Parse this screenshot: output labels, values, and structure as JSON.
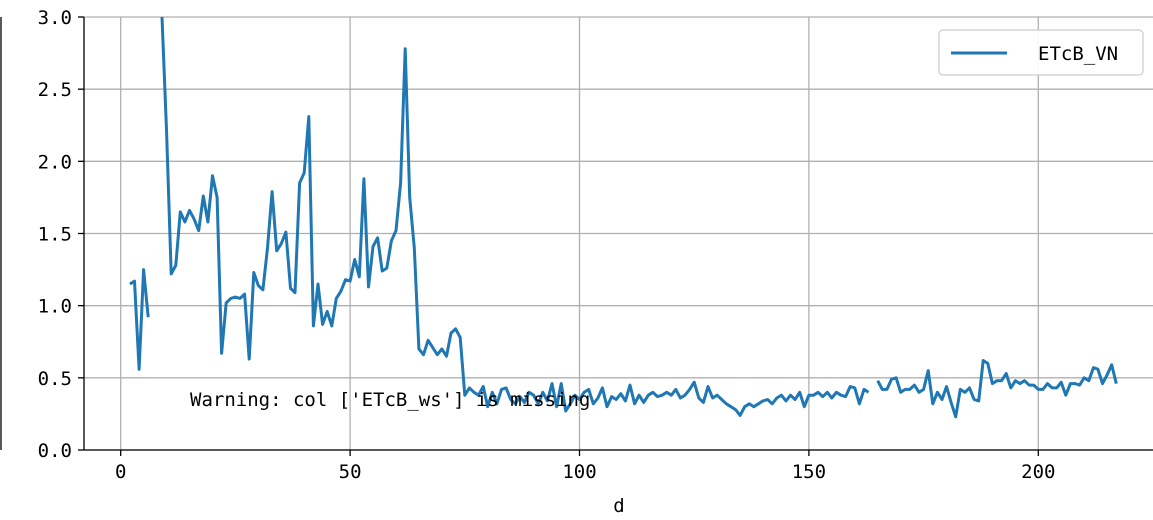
{
  "chart_data": {
    "type": "line",
    "title": "",
    "xlabel": "d",
    "ylabel": "",
    "xlim": [
      -8,
      225
    ],
    "ylim": [
      0,
      3.0
    ],
    "xticks": [
      0,
      50,
      100,
      150,
      200
    ],
    "yticks": [
      0.0,
      0.5,
      1.0,
      1.5,
      2.0,
      2.5,
      3.0
    ],
    "xtick_labels": [
      "0",
      "50",
      "100",
      "150",
      "200"
    ],
    "ytick_labels": [
      "0.0",
      "0.5",
      "1.0",
      "1.5",
      "2.0",
      "2.5",
      "3.0"
    ],
    "grid": true,
    "legend": "top-right",
    "annotation": "Warning: col ['ETcB_ws'] is missing",
    "series": [
      {
        "name": "ETcB_VN",
        "color": "#1f77b4",
        "segments": [
          [
            [
              2,
              1.15
            ],
            [
              3,
              1.17
            ],
            [
              4,
              0.56
            ],
            [
              5,
              1.25
            ],
            [
              6,
              0.92
            ]
          ],
          [
            [
              9,
              3.0
            ],
            [
              10,
              2.2
            ],
            [
              11,
              1.22
            ],
            [
              12,
              1.28
            ],
            [
              13,
              1.65
            ],
            [
              14,
              1.58
            ],
            [
              15,
              1.66
            ],
            [
              16,
              1.6
            ],
            [
              17,
              1.52
            ],
            [
              18,
              1.76
            ],
            [
              19,
              1.58
            ],
            [
              20,
              1.9
            ],
            [
              21,
              1.75
            ],
            [
              22,
              0.67
            ],
            [
              23,
              1.02
            ],
            [
              24,
              1.05
            ],
            [
              25,
              1.06
            ],
            [
              26,
              1.05
            ],
            [
              27,
              1.08
            ],
            [
              28,
              0.63
            ],
            [
              29,
              1.23
            ],
            [
              30,
              1.14
            ],
            [
              31,
              1.11
            ],
            [
              32,
              1.4
            ],
            [
              33,
              1.79
            ],
            [
              34,
              1.38
            ],
            [
              35,
              1.43
            ],
            [
              36,
              1.51
            ],
            [
              37,
              1.12
            ],
            [
              38,
              1.09
            ],
            [
              39,
              1.85
            ],
            [
              40,
              1.92
            ],
            [
              41,
              2.31
            ],
            [
              42,
              0.86
            ],
            [
              43,
              1.15
            ],
            [
              44,
              0.87
            ],
            [
              45,
              0.96
            ],
            [
              46,
              0.86
            ],
            [
              47,
              1.05
            ],
            [
              48,
              1.1
            ],
            [
              49,
              1.18
            ],
            [
              50,
              1.17
            ],
            [
              51,
              1.32
            ],
            [
              52,
              1.2
            ],
            [
              53,
              1.88
            ],
            [
              54,
              1.13
            ],
            [
              55,
              1.41
            ],
            [
              56,
              1.47
            ],
            [
              57,
              1.24
            ],
            [
              58,
              1.26
            ],
            [
              59,
              1.45
            ],
            [
              60,
              1.52
            ],
            [
              61,
              1.85
            ],
            [
              62,
              2.78
            ],
            [
              63,
              1.75
            ],
            [
              64,
              1.4
            ],
            [
              65,
              0.7
            ],
            [
              66,
              0.66
            ],
            [
              67,
              0.76
            ],
            [
              68,
              0.71
            ],
            [
              69,
              0.66
            ],
            [
              70,
              0.7
            ],
            [
              71,
              0.65
            ],
            [
              72,
              0.81
            ],
            [
              73,
              0.84
            ],
            [
              74,
              0.78
            ],
            [
              75,
              0.38
            ],
            [
              76,
              0.43
            ],
            [
              77,
              0.4
            ],
            [
              78,
              0.38
            ],
            [
              79,
              0.44
            ],
            [
              80,
              0.3
            ],
            [
              81,
              0.4
            ],
            [
              82,
              0.32
            ],
            [
              83,
              0.42
            ],
            [
              84,
              0.43
            ],
            [
              85,
              0.35
            ],
            [
              86,
              0.32
            ],
            [
              87,
              0.37
            ],
            [
              88,
              0.33
            ],
            [
              89,
              0.4
            ],
            [
              90,
              0.38
            ],
            [
              91,
              0.32
            ],
            [
              92,
              0.4
            ],
            [
              93,
              0.34
            ],
            [
              94,
              0.46
            ],
            [
              95,
              0.3
            ],
            [
              96,
              0.46
            ],
            [
              97,
              0.27
            ],
            [
              98,
              0.32
            ],
            [
              99,
              0.38
            ],
            [
              100,
              0.35
            ],
            [
              101,
              0.4
            ],
            [
              102,
              0.42
            ],
            [
              103,
              0.32
            ],
            [
              104,
              0.36
            ],
            [
              105,
              0.43
            ],
            [
              106,
              0.3
            ],
            [
              107,
              0.37
            ],
            [
              108,
              0.35
            ],
            [
              109,
              0.39
            ],
            [
              110,
              0.34
            ],
            [
              111,
              0.45
            ],
            [
              112,
              0.32
            ],
            [
              113,
              0.38
            ],
            [
              114,
              0.33
            ],
            [
              115,
              0.38
            ],
            [
              116,
              0.4
            ],
            [
              117,
              0.37
            ],
            [
              118,
              0.38
            ],
            [
              119,
              0.4
            ],
            [
              120,
              0.38
            ],
            [
              121,
              0.42
            ],
            [
              122,
              0.36
            ],
            [
              123,
              0.38
            ],
            [
              124,
              0.42
            ],
            [
              125,
              0.47
            ],
            [
              126,
              0.36
            ],
            [
              127,
              0.33
            ],
            [
              128,
              0.44
            ],
            [
              129,
              0.36
            ],
            [
              130,
              0.38
            ],
            [
              131,
              0.35
            ],
            [
              132,
              0.32
            ],
            [
              133,
              0.3
            ],
            [
              134,
              0.28
            ],
            [
              135,
              0.24
            ],
            [
              136,
              0.3
            ],
            [
              137,
              0.32
            ],
            [
              138,
              0.3
            ],
            [
              139,
              0.32
            ],
            [
              140,
              0.34
            ],
            [
              141,
              0.35
            ],
            [
              142,
              0.32
            ],
            [
              143,
              0.36
            ],
            [
              144,
              0.38
            ],
            [
              145,
              0.34
            ],
            [
              146,
              0.38
            ],
            [
              147,
              0.35
            ],
            [
              148,
              0.4
            ],
            [
              149,
              0.3
            ],
            [
              150,
              0.38
            ],
            [
              151,
              0.38
            ],
            [
              152,
              0.4
            ],
            [
              153,
              0.37
            ],
            [
              154,
              0.4
            ],
            [
              155,
              0.36
            ],
            [
              156,
              0.4
            ],
            [
              157,
              0.38
            ],
            [
              158,
              0.37
            ],
            [
              159,
              0.44
            ],
            [
              160,
              0.43
            ],
            [
              161,
              0.32
            ],
            [
              162,
              0.42
            ],
            [
              163,
              0.4
            ]
          ],
          [
            [
              165,
              0.48
            ],
            [
              166,
              0.42
            ],
            [
              167,
              0.42
            ],
            [
              168,
              0.49
            ],
            [
              169,
              0.5
            ],
            [
              170,
              0.4
            ],
            [
              171,
              0.42
            ],
            [
              172,
              0.42
            ],
            [
              173,
              0.45
            ],
            [
              174,
              0.4
            ],
            [
              175,
              0.42
            ],
            [
              176,
              0.55
            ],
            [
              177,
              0.32
            ],
            [
              178,
              0.4
            ],
            [
              179,
              0.35
            ],
            [
              180,
              0.44
            ],
            [
              181,
              0.33
            ],
            [
              182,
              0.23
            ],
            [
              183,
              0.42
            ],
            [
              184,
              0.4
            ],
            [
              185,
              0.43
            ],
            [
              186,
              0.35
            ],
            [
              187,
              0.34
            ],
            [
              188,
              0.62
            ],
            [
              189,
              0.6
            ],
            [
              190,
              0.46
            ],
            [
              191,
              0.48
            ],
            [
              192,
              0.48
            ],
            [
              193,
              0.53
            ],
            [
              194,
              0.43
            ],
            [
              195,
              0.48
            ],
            [
              196,
              0.46
            ],
            [
              197,
              0.48
            ],
            [
              198,
              0.45
            ],
            [
              199,
              0.45
            ],
            [
              200,
              0.42
            ],
            [
              201,
              0.42
            ],
            [
              202,
              0.46
            ],
            [
              203,
              0.43
            ],
            [
              204,
              0.43
            ],
            [
              205,
              0.47
            ],
            [
              206,
              0.38
            ],
            [
              207,
              0.46
            ],
            [
              208,
              0.46
            ],
            [
              209,
              0.45
            ],
            [
              210,
              0.5
            ],
            [
              211,
              0.48
            ],
            [
              212,
              0.57
            ],
            [
              213,
              0.56
            ],
            [
              214,
              0.46
            ],
            [
              215,
              0.52
            ],
            [
              216,
              0.59
            ],
            [
              217,
              0.46
            ]
          ]
        ]
      }
    ]
  }
}
